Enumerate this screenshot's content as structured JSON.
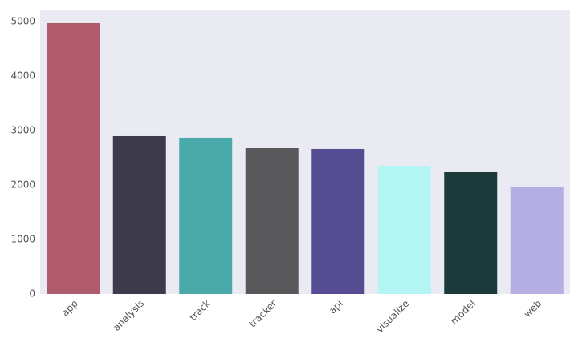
{
  "chart_data": {
    "type": "bar",
    "categories": [
      "app",
      "analysis",
      "track",
      "tracker",
      "api",
      "visualize",
      "model",
      "web"
    ],
    "values": [
      4970,
      2897,
      2868,
      2676,
      2662,
      2353,
      2235,
      1956
    ],
    "colors": [
      "#b05a6e",
      "#3d3a4b",
      "#4aaaa9",
      "#59595b",
      "#564c94",
      "#b3f5f3",
      "#1b3a3a",
      "#b4aee2"
    ],
    "ylim": [
      0,
      5220
    ],
    "yticks": [
      0,
      1000,
      2000,
      3000,
      4000,
      5000
    ],
    "grid": false
  }
}
